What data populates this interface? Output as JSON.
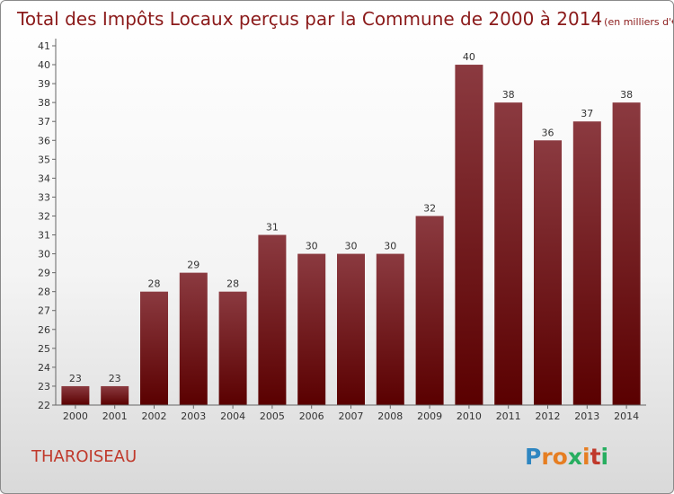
{
  "chart_data": {
    "type": "bar",
    "title": "Total des Impôts Locaux perçus par la Commune de 2000 à 2014",
    "title_unit": "(en milliers d'€)",
    "categories": [
      "2000",
      "2001",
      "2002",
      "2003",
      "2004",
      "2005",
      "2006",
      "2007",
      "2008",
      "2009",
      "2010",
      "2011",
      "2012",
      "2013",
      "2014"
    ],
    "values": [
      23,
      23,
      28,
      29,
      28,
      31,
      30,
      30,
      30,
      32,
      40,
      38,
      36,
      37,
      38
    ],
    "ylim": [
      22,
      41
    ],
    "yticks": [
      22,
      23,
      24,
      25,
      26,
      27,
      28,
      29,
      30,
      31,
      32,
      33,
      34,
      35,
      36,
      37,
      38,
      39,
      40,
      41
    ],
    "xlabel": "",
    "ylabel": "",
    "grid": false,
    "bar_color_top": "#8b3a40",
    "bar_color_bottom": "#5a0000"
  },
  "commune_name": "THAROISEAU",
  "logo": {
    "letters": [
      "P",
      "r",
      "o",
      "x",
      "i",
      "t",
      "i"
    ],
    "colors": [
      "#2e86c1",
      "#e67e22",
      "#e67e22",
      "#27ae60",
      "#e67e22",
      "#c0392b",
      "#27ae60"
    ]
  }
}
